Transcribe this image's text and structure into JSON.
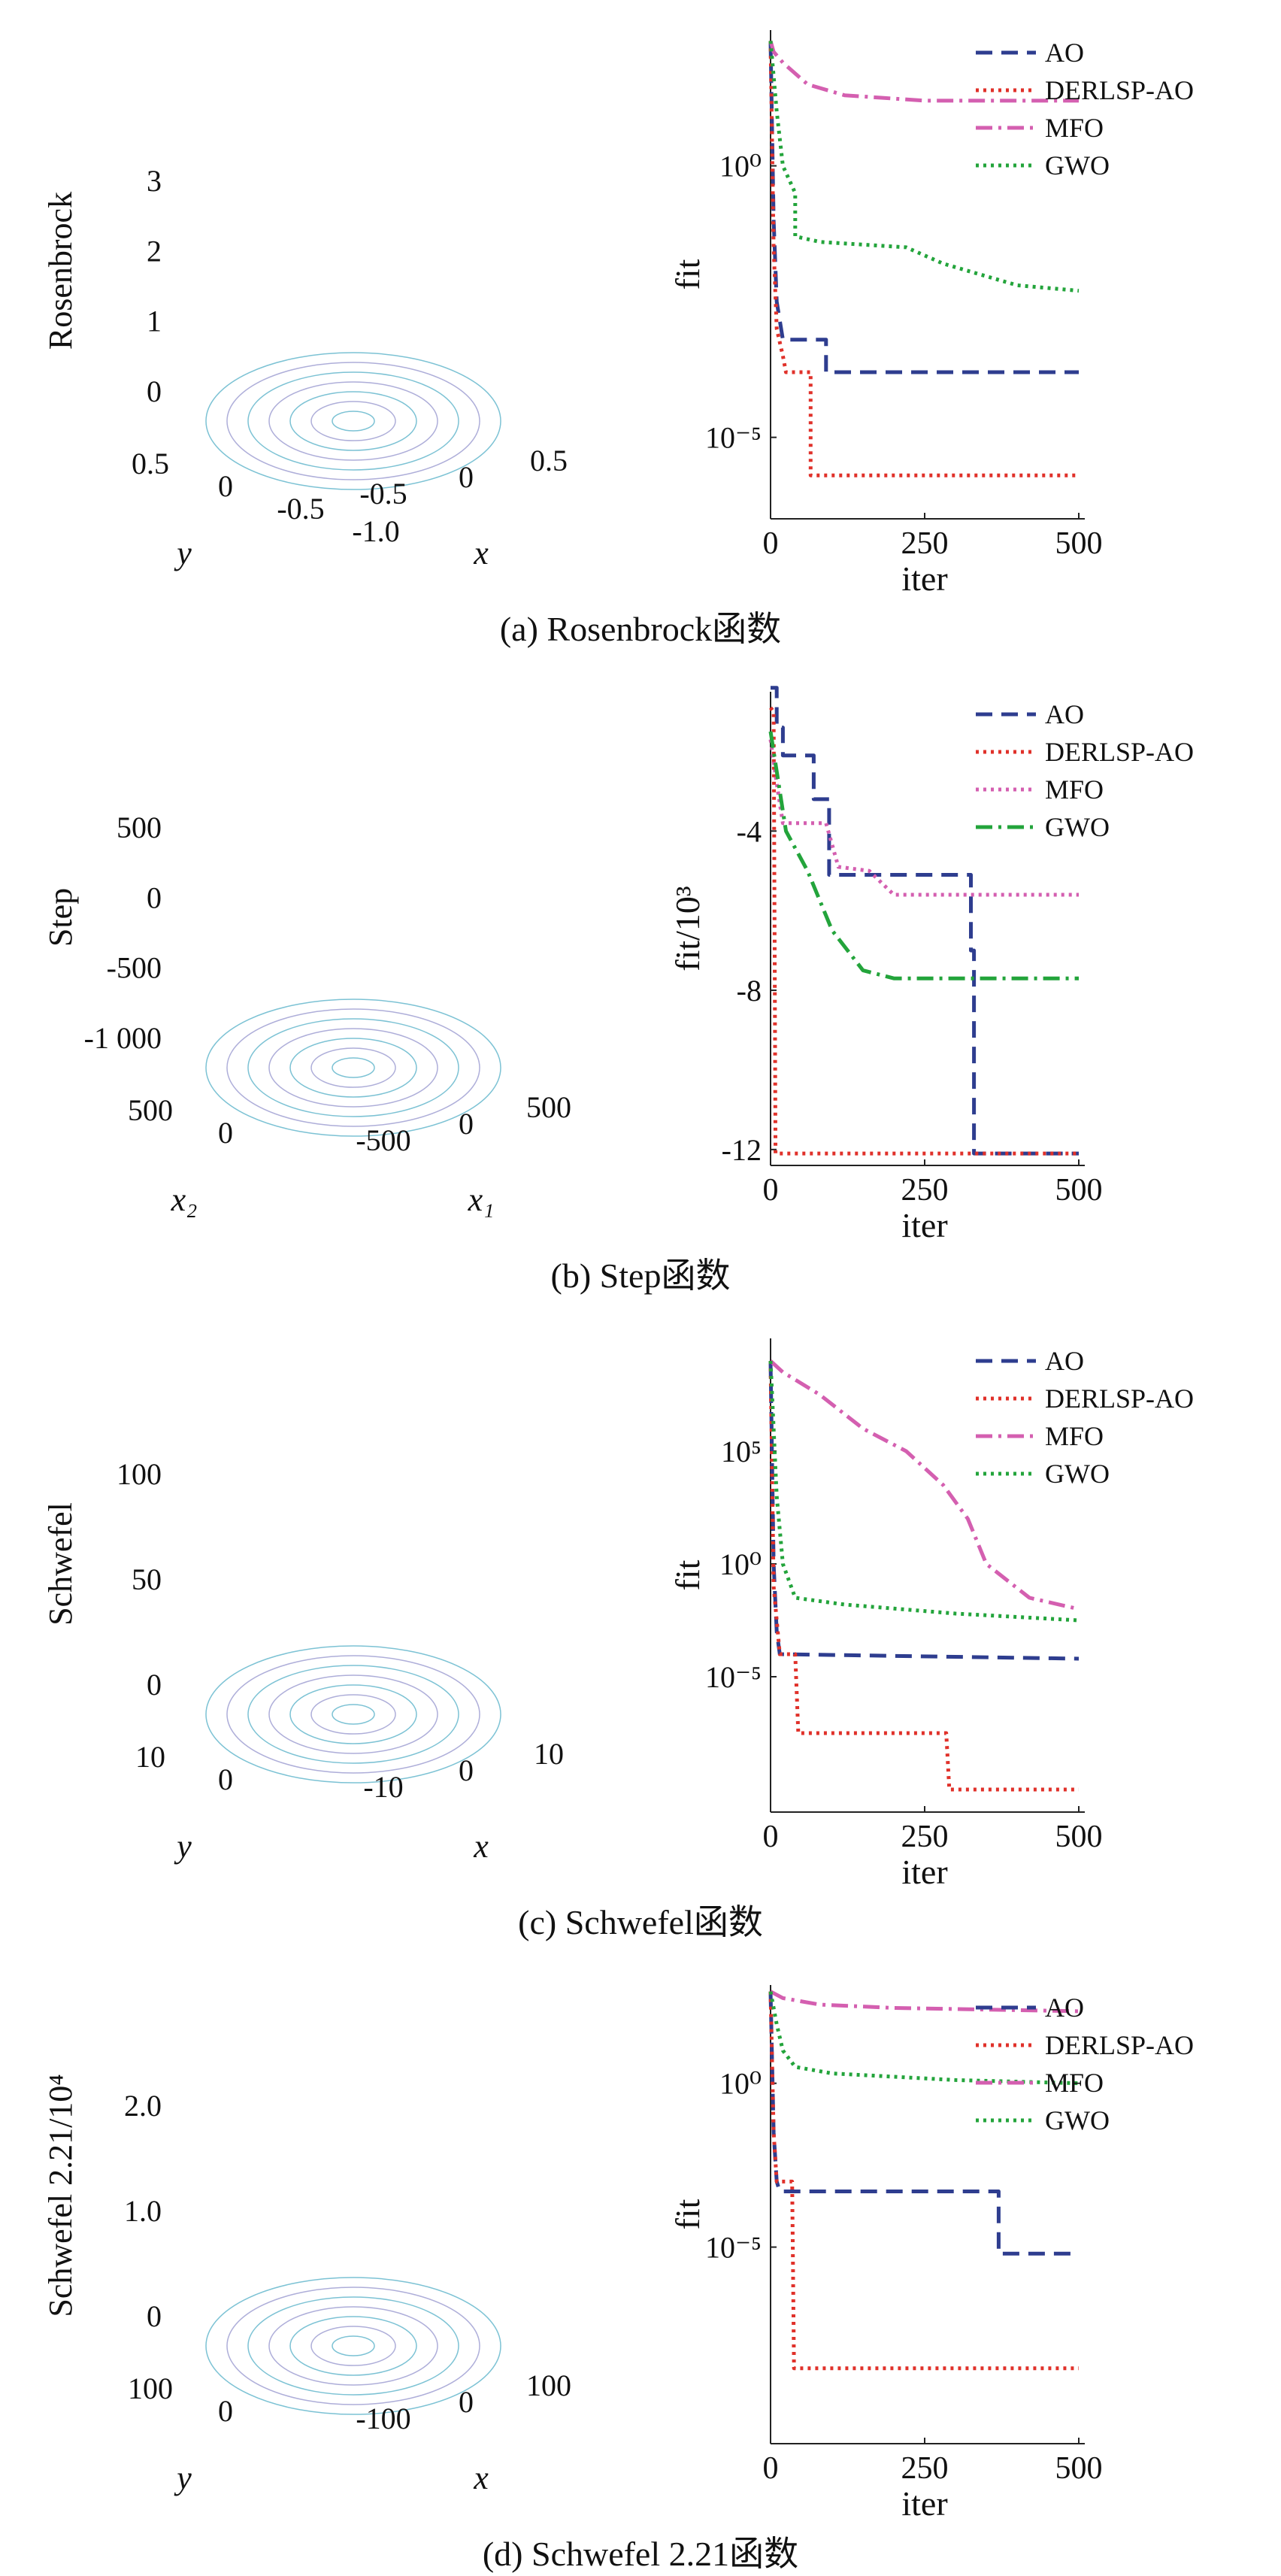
{
  "panels": [
    {
      "id": "a",
      "caption": "(a) Rosenbrock函数",
      "surface": {
        "kind": "rough",
        "zlabel": "Rosenbrock",
        "zticks": [
          "0",
          "1",
          "2",
          "3"
        ],
        "xlabel": "x",
        "ylabel": "y",
        "xticks": [
          "-0.5",
          "0",
          "0.5"
        ],
        "yticks": [
          "0.5",
          "0",
          "-0.5",
          "-1.0"
        ]
      },
      "chart_data": {
        "type": "line",
        "xlabel": "iter",
        "ylabel": "fit",
        "xlim": [
          0,
          500
        ],
        "xticks": [
          0,
          250,
          500
        ],
        "yscale": "log",
        "ylim": [
          -6.5,
          2.5
        ],
        "yticks": [
          {
            "v": 0,
            "label": "10⁰"
          },
          {
            "v": -5,
            "label": "10⁻⁵"
          }
        ],
        "legend": "top-right",
        "series": [
          {
            "name": "AO",
            "color": "#2e3d8f",
            "style": "dash",
            "points": [
              [
                0,
                2.3
              ],
              [
                5,
                -1
              ],
              [
                10,
                -2.5
              ],
              [
                20,
                -3.2
              ],
              [
                90,
                -3.2
              ],
              [
                90,
                -3.8
              ],
              [
                500,
                -3.8
              ]
            ]
          },
          {
            "name": "DERLSP-AO",
            "color": "#e0312a",
            "style": "dot",
            "points": [
              [
                0,
                2.3
              ],
              [
                5,
                -1.5
              ],
              [
                10,
                -3
              ],
              [
                20,
                -3.5
              ],
              [
                25,
                -3.8
              ],
              [
                65,
                -3.8
              ],
              [
                65,
                -5.7
              ],
              [
                500,
                -5.7
              ]
            ]
          },
          {
            "name": "MFO",
            "color": "#d45fb0",
            "style": "dashdot",
            "points": [
              [
                0,
                2.3
              ],
              [
                5,
                2.1
              ],
              [
                20,
                1.9
              ],
              [
                60,
                1.5
              ],
              [
                120,
                1.3
              ],
              [
                250,
                1.2
              ],
              [
                500,
                1.2
              ]
            ]
          },
          {
            "name": "GWO",
            "color": "#23a43b",
            "style": "dot",
            "points": [
              [
                0,
                2.3
              ],
              [
                10,
                1
              ],
              [
                20,
                0
              ],
              [
                40,
                -0.5
              ],
              [
                40,
                -1.3
              ],
              [
                80,
                -1.4
              ],
              [
                220,
                -1.5
              ],
              [
                280,
                -1.8
              ],
              [
                400,
                -2.2
              ],
              [
                500,
                -2.3
              ]
            ]
          }
        ]
      }
    },
    {
      "id": "b",
      "caption": "(b) Step函数",
      "surface": {
        "kind": "wavy",
        "zlabel": "Step",
        "zticks": [
          "-1 000",
          "-500",
          "0",
          "500"
        ],
        "xlabel": "x₁",
        "ylabel": "x₂",
        "xticks": [
          "-500",
          "0",
          "500"
        ],
        "yticks": [
          "500",
          "0"
        ]
      },
      "chart_data": {
        "type": "line",
        "xlabel": "iter",
        "ylabel": "fit/10³",
        "xlim": [
          0,
          500
        ],
        "xticks": [
          0,
          250,
          500
        ],
        "yscale": "linear",
        "ylim": [
          -12.4,
          -0.5
        ],
        "yticks": [
          {
            "v": -4,
            "label": "-4"
          },
          {
            "v": -8,
            "label": "-8"
          },
          {
            "v": -12,
            "label": "-12"
          }
        ],
        "legend": "top-right",
        "series": [
          {
            "name": "AO",
            "color": "#2e3d8f",
            "style": "dash",
            "points": [
              [
                0,
                -0.4
              ],
              [
                10,
                -0.4
              ],
              [
                10,
                -1.4
              ],
              [
                20,
                -1.4
              ],
              [
                20,
                -2.1
              ],
              [
                70,
                -2.1
              ],
              [
                70,
                -3.2
              ],
              [
                95,
                -3.2
              ],
              [
                95,
                -5.1
              ],
              [
                325,
                -5.1
              ],
              [
                325,
                -7
              ],
              [
                330,
                -7
              ],
              [
                330,
                -12.1
              ],
              [
                500,
                -12.1
              ]
            ]
          },
          {
            "name": "DERLSP-AO",
            "color": "#e0312a",
            "style": "dot",
            "points": [
              [
                0,
                -0.9
              ],
              [
                5,
                -1
              ],
              [
                8,
                -12.1
              ],
              [
                500,
                -12.1
              ]
            ]
          },
          {
            "name": "MFO",
            "color": "#d45fb0",
            "style": "dot",
            "points": [
              [
                0,
                -1.7
              ],
              [
                10,
                -2.8
              ],
              [
                20,
                -3.8
              ],
              [
                90,
                -3.8
              ],
              [
                110,
                -4.9
              ],
              [
                160,
                -5.0
              ],
              [
                200,
                -5.6
              ],
              [
                500,
                -5.6
              ]
            ]
          },
          {
            "name": "GWO",
            "color": "#23a43b",
            "style": "dashdot",
            "points": [
              [
                0,
                -1.5
              ],
              [
                10,
                -2.5
              ],
              [
                25,
                -4
              ],
              [
                60,
                -5
              ],
              [
                100,
                -6.5
              ],
              [
                150,
                -7.5
              ],
              [
                200,
                -7.7
              ],
              [
                500,
                -7.7
              ]
            ]
          }
        ]
      }
    },
    {
      "id": "c",
      "caption": "(c) Schwefel函数",
      "surface": {
        "kind": "ridges",
        "zlabel": "Schwefel",
        "zticks": [
          "0",
          "50",
          "100"
        ],
        "xlabel": "x",
        "ylabel": "y",
        "xticks": [
          "-10",
          "0",
          "10"
        ],
        "yticks": [
          "10",
          "0"
        ]
      },
      "chart_data": {
        "type": "line",
        "xlabel": "iter",
        "ylabel": "fit",
        "xlim": [
          0,
          500
        ],
        "xticks": [
          0,
          250,
          500
        ],
        "yscale": "log",
        "ylim": [
          -11,
          10
        ],
        "yticks": [
          {
            "v": 5,
            "label": "10⁵"
          },
          {
            "v": 0,
            "label": "10⁰"
          },
          {
            "v": -5,
            "label": "10⁻⁵"
          }
        ],
        "legend": "top-right",
        "series": [
          {
            "name": "AO",
            "color": "#2e3d8f",
            "style": "dash",
            "points": [
              [
                0,
                9
              ],
              [
                5,
                0
              ],
              [
                10,
                -3
              ],
              [
                15,
                -4
              ],
              [
                500,
                -4.2
              ]
            ]
          },
          {
            "name": "DERLSP-AO",
            "color": "#e0312a",
            "style": "dot",
            "points": [
              [
                0,
                9
              ],
              [
                5,
                -1
              ],
              [
                15,
                -4
              ],
              [
                40,
                -4
              ],
              [
                45,
                -7.5
              ],
              [
                285,
                -7.5
              ],
              [
                290,
                -10
              ],
              [
                500,
                -10
              ]
            ]
          },
          {
            "name": "MFO",
            "color": "#d45fb0",
            "style": "dashdot",
            "points": [
              [
                0,
                9
              ],
              [
                20,
                8.5
              ],
              [
                80,
                7.5
              ],
              [
                150,
                6
              ],
              [
                220,
                5
              ],
              [
                280,
                3.5
              ],
              [
                320,
                2
              ],
              [
                350,
                0
              ],
              [
                420,
                -1.5
              ],
              [
                500,
                -2
              ]
            ]
          },
          {
            "name": "GWO",
            "color": "#23a43b",
            "style": "dot",
            "points": [
              [
                0,
                9
              ],
              [
                10,
                3
              ],
              [
                20,
                0
              ],
              [
                40,
                -1.5
              ],
              [
                120,
                -1.8
              ],
              [
                300,
                -2.2
              ],
              [
                500,
                -2.5
              ]
            ]
          }
        ]
      }
    },
    {
      "id": "d",
      "caption": "(d) Schwefel 2.21函数",
      "surface": {
        "kind": "bowl",
        "zlabel": "Schwefel 2.21/10⁴",
        "zticks": [
          "0",
          "1.0",
          "2.0"
        ],
        "xlabel": "x",
        "ylabel": "y",
        "xticks": [
          "-100",
          "0",
          "100"
        ],
        "yticks": [
          "100",
          "0"
        ]
      },
      "chart_data": {
        "type": "line",
        "xlabel": "iter",
        "ylabel": "fit",
        "xlim": [
          0,
          500
        ],
        "xticks": [
          0,
          250,
          500
        ],
        "yscale": "log",
        "ylim": [
          -11,
          3
        ],
        "yticks": [
          {
            "v": 0,
            "label": "10⁰"
          },
          {
            "v": -5,
            "label": "10⁻⁵"
          }
        ],
        "legend": "top-right",
        "series": [
          {
            "name": "AO",
            "color": "#2e3d8f",
            "style": "dash",
            "points": [
              [
                0,
                2.8
              ],
              [
                5,
                -1.5
              ],
              [
                10,
                -3
              ],
              [
                15,
                -3.3
              ],
              [
                370,
                -3.3
              ],
              [
                370,
                -5.2
              ],
              [
                500,
                -5.2
              ]
            ]
          },
          {
            "name": "DERLSP-AO",
            "color": "#e0312a",
            "style": "dot",
            "points": [
              [
                0,
                2.8
              ],
              [
                5,
                -1.5
              ],
              [
                10,
                -3
              ],
              [
                35,
                -3
              ],
              [
                38,
                -8.7
              ],
              [
                500,
                -8.7
              ]
            ]
          },
          {
            "name": "MFO",
            "color": "#d45fb0",
            "style": "dashdot",
            "points": [
              [
                0,
                2.8
              ],
              [
                20,
                2.6
              ],
              [
                80,
                2.4
              ],
              [
                200,
                2.3
              ],
              [
                500,
                2.2
              ]
            ]
          },
          {
            "name": "GWO",
            "color": "#23a43b",
            "style": "dot",
            "points": [
              [
                0,
                2.8
              ],
              [
                10,
                1.8
              ],
              [
                20,
                1
              ],
              [
                40,
                0.5
              ],
              [
                100,
                0.3
              ],
              [
                300,
                0.1
              ],
              [
                500,
                0
              ]
            ]
          }
        ]
      }
    }
  ]
}
